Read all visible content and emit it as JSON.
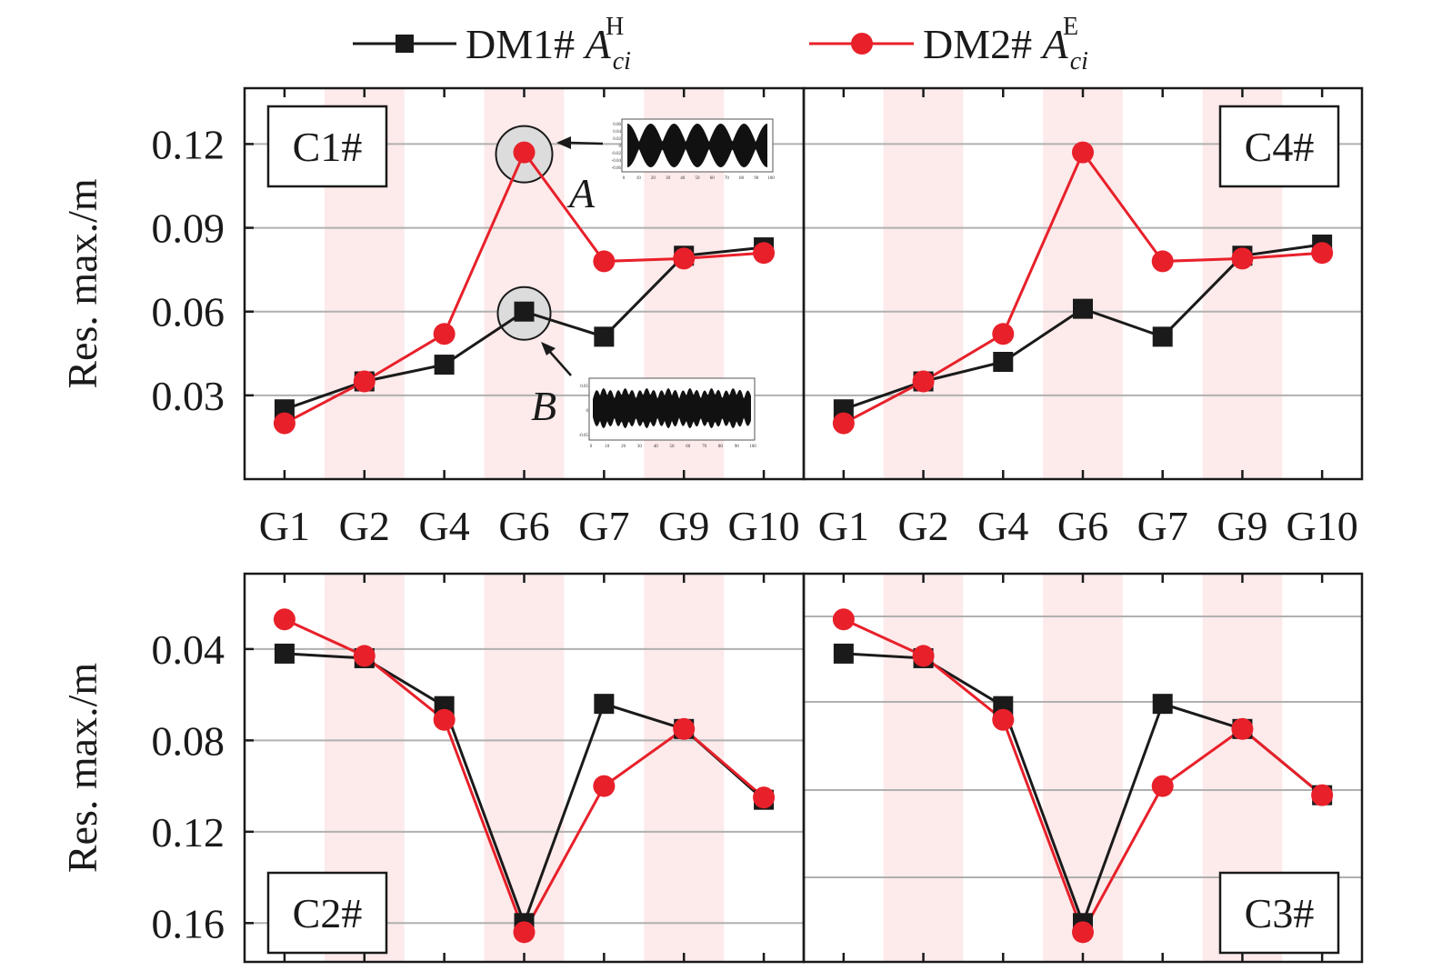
{
  "legend": {
    "series1_prefix": "DM1# ",
    "series1_sym": "A",
    "series1_sub": "ci",
    "series1_sup": "H",
    "series2_prefix": "DM2# ",
    "series2_sym": "A",
    "series2_sub": "ci",
    "series2_sup": "E"
  },
  "colors": {
    "series1": "#1a1a1a",
    "series2": "#e8202a",
    "band": "#fdeaea",
    "grid": "#b0b0b0",
    "marker_highlight": "#dcdcdc"
  },
  "annotations": {
    "a": "A",
    "b": "B",
    "inset_a_yticks": [
      "0.06",
      "0.04",
      "0.02",
      "0",
      "-0.02",
      "-0.04",
      "-0.06"
    ],
    "inset_b_yticks": [
      "0.05",
      "0",
      "-0.05"
    ],
    "inset_xticks": [
      "0",
      "10",
      "20",
      "30",
      "40",
      "50",
      "60",
      "70",
      "80",
      "90",
      "100"
    ]
  },
  "chart_data": [
    {
      "type": "line",
      "panel": "C1#",
      "ylabel": "Res. max./m",
      "categories": [
        "G1",
        "G2",
        "G4",
        "G6",
        "G7",
        "G9",
        "G10"
      ],
      "yticks": [
        "0.03",
        "0.06",
        "0.09",
        "0.12"
      ],
      "ylim": [
        0.0,
        0.14
      ],
      "y_inverted": false,
      "label_position": "top-left",
      "series": [
        {
          "values": [
            0.025,
            0.035,
            0.041,
            0.06,
            0.051,
            0.08,
            0.083
          ]
        },
        {
          "values": [
            0.02,
            0.035,
            0.052,
            0.117,
            0.078,
            0.079,
            0.081
          ]
        }
      ]
    },
    {
      "type": "line",
      "panel": "C4#",
      "categories": [
        "G1",
        "G2",
        "G4",
        "G6",
        "G7",
        "G9",
        "G10"
      ],
      "yticks": [],
      "ylim": [
        0.0,
        0.14
      ],
      "y_inverted": false,
      "label_position": "top-right",
      "series": [
        {
          "values": [
            0.025,
            0.035,
            0.042,
            0.061,
            0.051,
            0.08,
            0.084
          ]
        },
        {
          "values": [
            0.02,
            0.035,
            0.052,
            0.117,
            0.078,
            0.079,
            0.081
          ]
        }
      ]
    },
    {
      "type": "line",
      "panel": "C2#",
      "ylabel": "Res. max./m",
      "categories": [
        "G1",
        "G2",
        "G4",
        "G6",
        "G7",
        "G9",
        "G10"
      ],
      "yticks": [
        "0.04",
        "0.08",
        "0.12",
        "0.16"
      ],
      "ylim": [
        0.007,
        0.177
      ],
      "y_inverted": true,
      "label_position": "bottom-left",
      "series": [
        {
          "values": [
            0.042,
            0.044,
            0.065,
            0.16,
            0.064,
            0.075,
            0.106
          ]
        },
        {
          "values": [
            0.027,
            0.043,
            0.071,
            0.164,
            0.1,
            0.075,
            0.105
          ]
        }
      ]
    },
    {
      "type": "line",
      "panel": "C3#",
      "categories": [
        "G1",
        "G2",
        "G4",
        "G6",
        "G7",
        "G9",
        "G10"
      ],
      "yticks": [],
      "ylim": [
        0.007,
        0.177
      ],
      "y_inverted": true,
      "label_position": "bottom-right",
      "series": [
        {
          "values": [
            0.042,
            0.044,
            0.065,
            0.16,
            0.064,
            0.075,
            0.104
          ]
        },
        {
          "values": [
            0.027,
            0.043,
            0.071,
            0.164,
            0.1,
            0.075,
            0.104
          ]
        }
      ]
    }
  ]
}
